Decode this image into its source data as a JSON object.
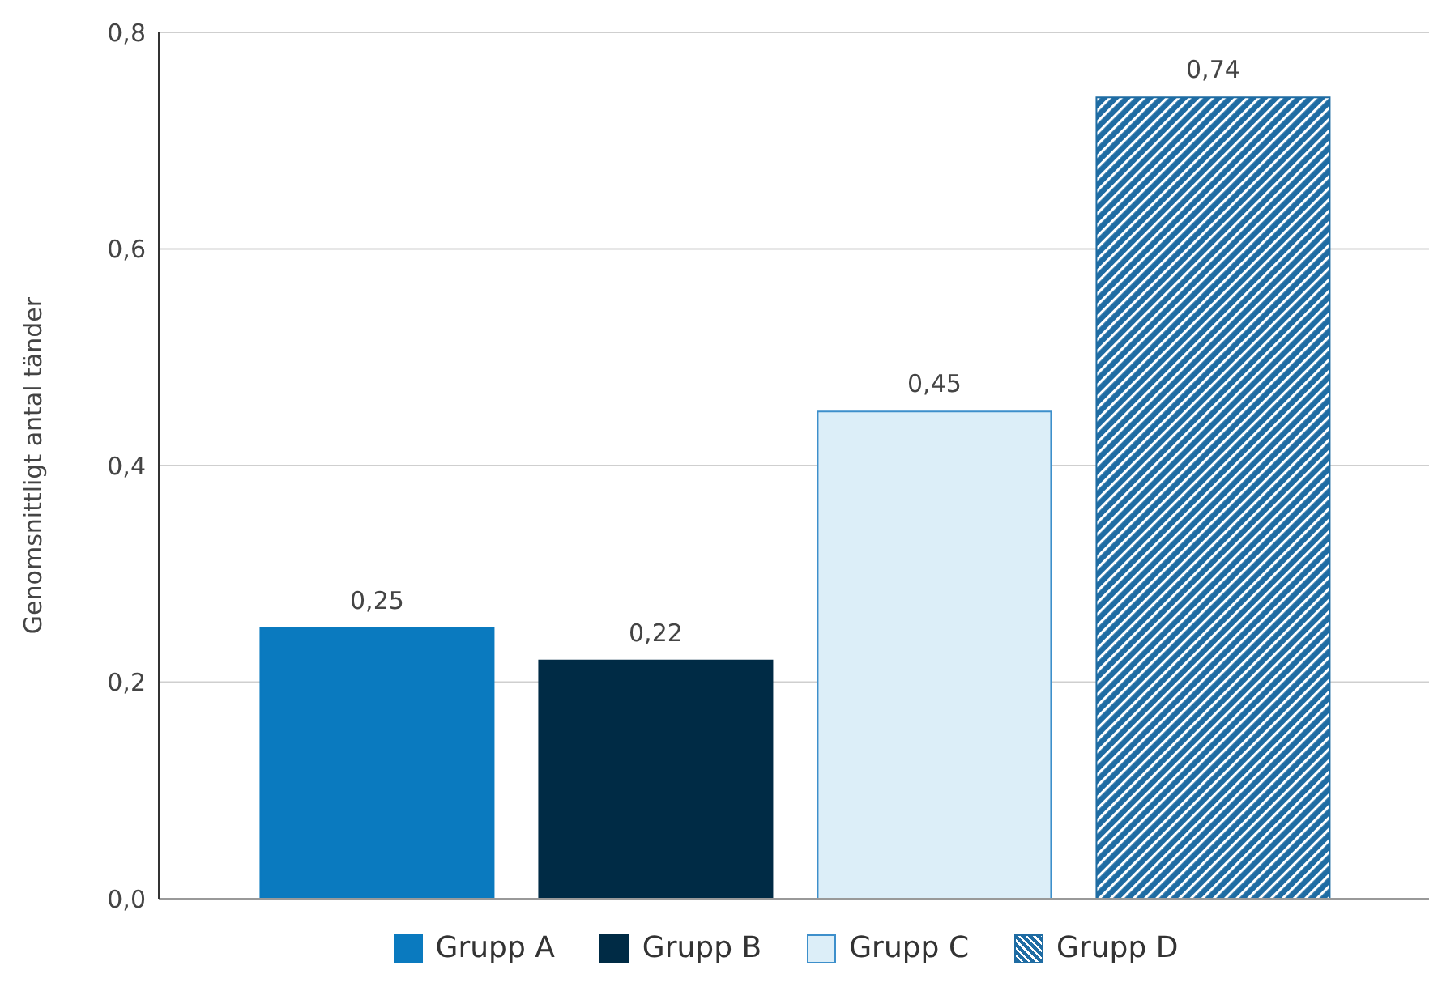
{
  "chart_data": {
    "type": "bar",
    "ylabel": "Genomsnittligt antal tänder",
    "categories": [
      null
    ],
    "series": [
      {
        "name": "Grupp A",
        "color": "#0a7abf",
        "values": [
          0.25
        ],
        "value_labels": [
          "0,25"
        ]
      },
      {
        "name": "Grupp B",
        "color": "#002b45",
        "values": [
          0.22
        ],
        "value_labels": [
          "0,22"
        ]
      },
      {
        "name": "Grupp C",
        "color": "#dceef8",
        "values": [
          0.45
        ],
        "value_labels": [
          "0,45"
        ]
      },
      {
        "name": "Grupp D",
        "color": "#1f6ca3",
        "values": [
          0.74
        ],
        "value_labels": [
          "0,74"
        ]
      }
    ],
    "ylim": [
      0,
      0.8
    ],
    "yticks": [
      {
        "value": 0,
        "label": "0,0"
      },
      {
        "value": 0.2,
        "label": "0,2"
      },
      {
        "value": 0.4,
        "label": "0,4"
      },
      {
        "value": 0.6,
        "label": "0,6"
      },
      {
        "value": 0.8,
        "label": "0,8"
      }
    ],
    "grid": "y",
    "legend": "bottom",
    "tick_labels": "y"
  }
}
